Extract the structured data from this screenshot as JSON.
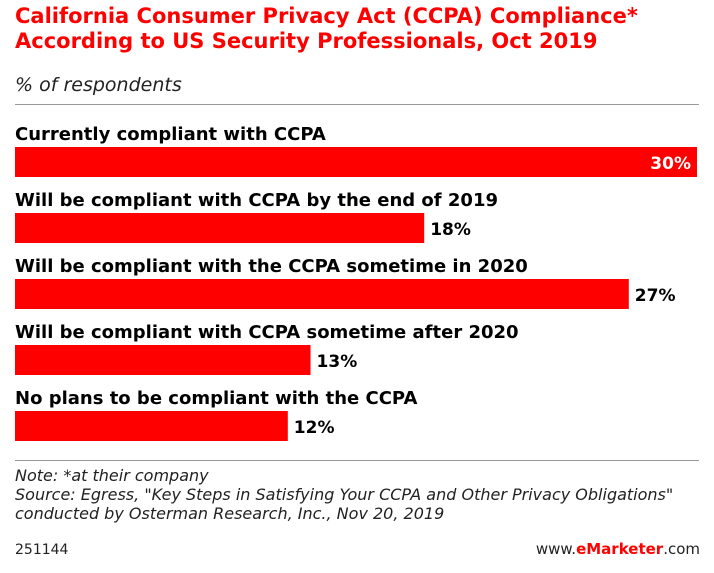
{
  "chart_data": {
    "type": "bar",
    "orientation": "horizontal",
    "title": "California Consumer Privacy Act (CCPA) Compliance* According to US Security Professionals, Oct 2019",
    "subtitle": "% of respondents",
    "categories": [
      "Currently compliant with CCPA",
      "Will be compliant with CCPA by the end of 2019",
      "Will be compliant with the CCPA sometime in 2020",
      "Will be compliant with CCPA sometime after 2020",
      "No plans to be compliant with the CCPA"
    ],
    "values": [
      30,
      18,
      27,
      13,
      12
    ],
    "value_labels": [
      "30%",
      "18%",
      "27%",
      "13%",
      "12%"
    ],
    "unit": "%",
    "xlim": [
      0,
      30
    ],
    "bar_color": "#ff0000"
  },
  "note": "Note: *at their company",
  "source": "Source: Egress, \"Key Steps in Satisfying Your CCPA and Other Privacy Obligations\" conducted by Osterman Research, Inc., Nov 20, 2019",
  "footer": {
    "chart_id": "251144",
    "brand_prefix": "www.",
    "brand_name": "eMarketer",
    "brand_suffix": ".com"
  },
  "colors": {
    "accent": "#ff0000",
    "text": "#000000"
  }
}
